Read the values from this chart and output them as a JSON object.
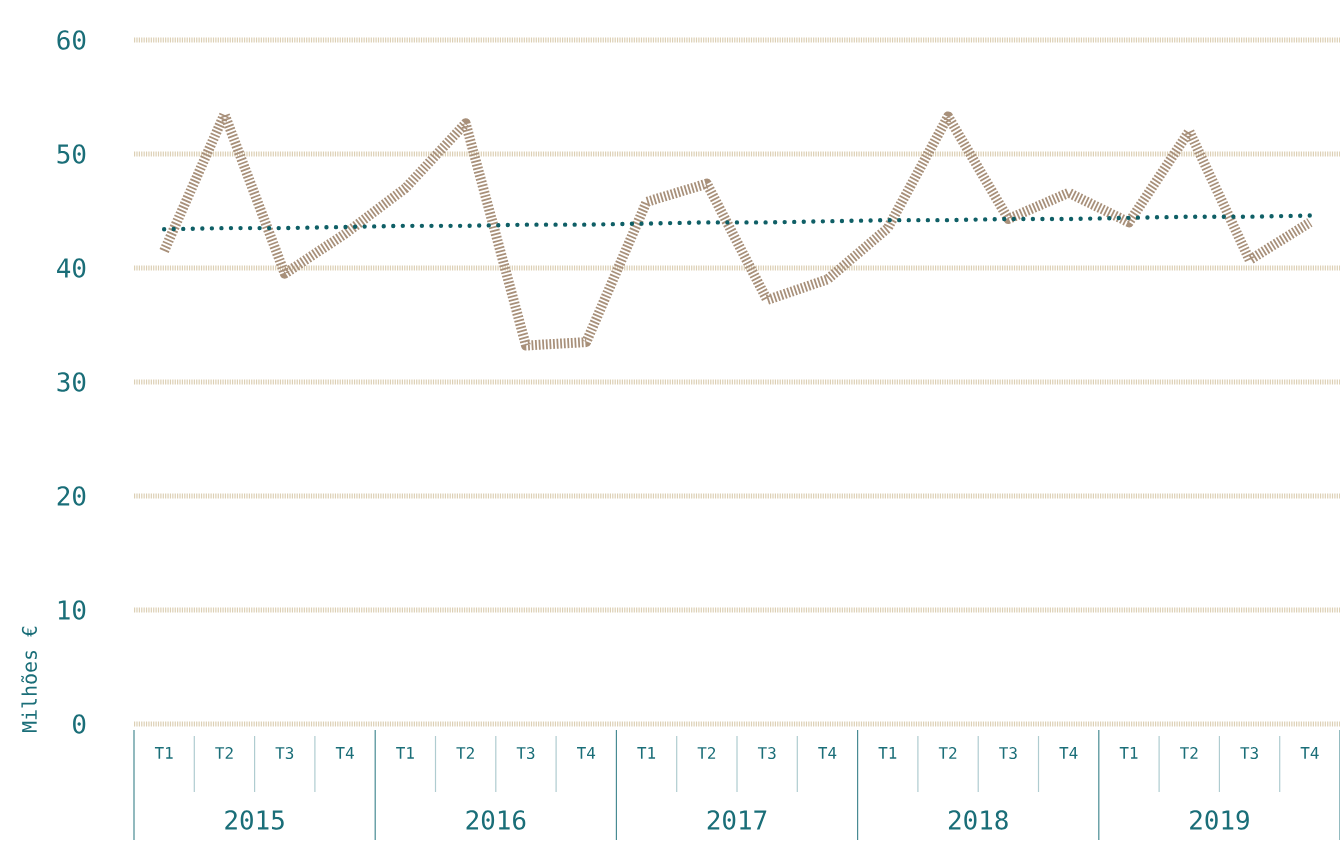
{
  "chart_data": {
    "type": "line",
    "ylabel": "Milhões €",
    "categories": [
      "T1",
      "T2",
      "T3",
      "T4",
      "T1",
      "T2",
      "T3",
      "T4",
      "T1",
      "T2",
      "T3",
      "T4",
      "T1",
      "T2",
      "T3",
      "T4",
      "T1",
      "T2",
      "T3",
      "T4"
    ],
    "series": [
      {
        "color": "#a8907a",
        "line_style": "dashed",
        "values": [
          41.5,
          53.5,
          39.5,
          43,
          47,
          52.7,
          33.2,
          33.5,
          45.8,
          47.4,
          37.2,
          39,
          43.5,
          53.3,
          44.3,
          46.6,
          44,
          52,
          40.7,
          44
        ]
      },
      {
        "color": "#0f5f66",
        "line_style": "dotted",
        "values": [
          43.4,
          43.5,
          43.5,
          43.6,
          43.7,
          43.7,
          43.8,
          43.8,
          43.9,
          44.0,
          44.0,
          44.1,
          44.2,
          44.2,
          44.3,
          44.3,
          44.4,
          44.5,
          44.5,
          44.6
        ]
      }
    ],
    "ylim": [
      0,
      60
    ],
    "yticks": [
      0,
      10,
      20,
      30,
      40,
      50,
      60
    ],
    "grid": "y",
    "marker": "none",
    "annotations": [
      "2015",
      "2016",
      "2017",
      "2018",
      "2019"
    ]
  }
}
